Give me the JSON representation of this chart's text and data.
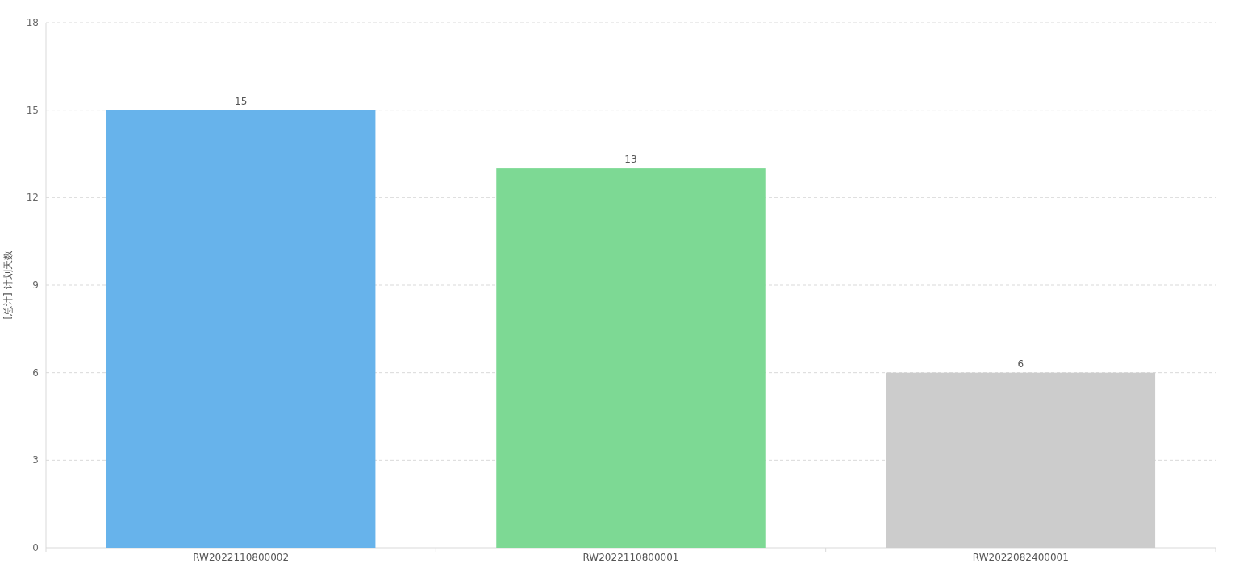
{
  "chart_data": {
    "type": "bar",
    "ylabel": "[总计] 计划天数",
    "categories": [
      "RW2022110800002",
      "RW2022110800001",
      "RW2022082400001"
    ],
    "values": [
      15,
      13,
      6
    ],
    "colors": [
      "#67b3eb",
      "#7dd994",
      "#cccccc"
    ],
    "ylim": [
      0,
      18
    ],
    "yticks": [
      0,
      3,
      6,
      9,
      12,
      15,
      18
    ],
    "grid": "y",
    "data_labels": true
  }
}
